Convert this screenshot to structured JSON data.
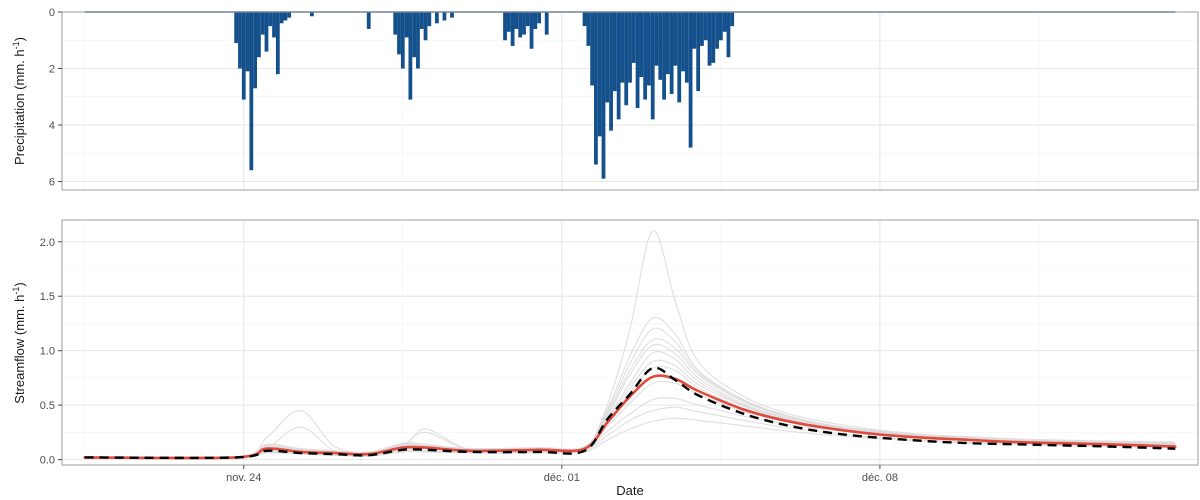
{
  "chart_data": [
    {
      "panel": "top",
      "type": "bar",
      "ylabel": "Precipitation (mm. h",
      "ylabel_sup": "-1",
      "ylabel_end": ")",
      "ylim": [
        6.3,
        0
      ],
      "y_reversed": true,
      "y_ticks": [
        0,
        2,
        4,
        6
      ],
      "y_tick_labels": [
        "0",
        "2",
        "4",
        "6"
      ],
      "grid": true,
      "colors": {
        "bars": "#14508c"
      },
      "x_range": [
        "2020-11-20T00:00",
        "2020-12-15T00:00"
      ],
      "x": [
        "2020-11-23T20:00",
        "2020-11-23T22:00",
        "2020-11-24T00:00",
        "2020-11-24T02:00",
        "2020-11-24T04:00",
        "2020-11-24T06:00",
        "2020-11-24T08:00",
        "2020-11-24T10:00",
        "2020-11-24T12:00",
        "2020-11-24T14:00",
        "2020-11-24T16:00",
        "2020-11-24T18:00",
        "2020-11-24T20:00",
        "2020-11-24T22:00",
        "2020-11-25T00:00",
        "2020-11-25T12:00",
        "2020-11-26T18:00",
        "2020-11-27T08:00",
        "2020-11-27T10:00",
        "2020-11-27T12:00",
        "2020-11-27T14:00",
        "2020-11-27T16:00",
        "2020-11-27T18:00",
        "2020-11-27T20:00",
        "2020-11-27T22:00",
        "2020-11-28T00:00",
        "2020-11-28T02:00",
        "2020-11-28T06:00",
        "2020-11-28T10:00",
        "2020-11-28T14:00",
        "2020-11-29T18:00",
        "2020-11-29T20:00",
        "2020-11-29T22:00",
        "2020-11-30T00:00",
        "2020-11-30T02:00",
        "2020-11-30T04:00",
        "2020-11-30T06:00",
        "2020-11-30T08:00",
        "2020-11-30T10:00",
        "2020-11-30T12:00",
        "2020-11-30T16:00",
        "2020-12-01T12:00",
        "2020-12-01T14:00",
        "2020-12-01T16:00",
        "2020-12-01T18:00",
        "2020-12-01T20:00",
        "2020-12-01T22:00",
        "2020-12-02T00:00",
        "2020-12-02T02:00",
        "2020-12-02T04:00",
        "2020-12-02T06:00",
        "2020-12-02T08:00",
        "2020-12-02T10:00",
        "2020-12-02T12:00",
        "2020-12-02T14:00",
        "2020-12-02T16:00",
        "2020-12-02T18:00",
        "2020-12-02T20:00",
        "2020-12-02T22:00",
        "2020-12-03T00:00",
        "2020-12-03T02:00",
        "2020-12-03T04:00",
        "2020-12-03T06:00",
        "2020-12-03T08:00",
        "2020-12-03T10:00",
        "2020-12-03T12:00",
        "2020-12-03T14:00",
        "2020-12-03T16:00",
        "2020-12-03T18:00",
        "2020-12-03T20:00",
        "2020-12-03T22:00",
        "2020-12-04T00:00",
        "2020-12-04T02:00",
        "2020-12-04T04:00",
        "2020-12-04T06:00",
        "2020-12-04T08:00",
        "2020-12-04T10:00",
        "2020-12-04T12:00",
        "2020-12-04T14:00",
        "2020-12-04T16:00",
        "2020-12-04T18:00"
      ],
      "values": [
        1.1,
        2.0,
        3.1,
        2.1,
        5.6,
        2.7,
        1.6,
        0.8,
        1.4,
        0.5,
        0.9,
        2.2,
        0.4,
        0.3,
        0.2,
        0.15,
        0.6,
        0.8,
        1.5,
        2.0,
        0.9,
        3.1,
        1.6,
        2.0,
        0.6,
        1.0,
        0.5,
        0.4,
        0.3,
        0.2,
        1.0,
        0.7,
        1.2,
        0.6,
        0.9,
        0.8,
        0.5,
        1.3,
        0.6,
        0.4,
        0.8,
        0.5,
        1.2,
        2.6,
        5.4,
        4.4,
        5.9,
        3.2,
        4.2,
        2.8,
        3.8,
        2.5,
        3.3,
        2.5,
        1.8,
        3.4,
        2.3,
        3.1,
        2.6,
        3.8,
        1.9,
        2.4,
        3.1,
        2.2,
        2.9,
        1.9,
        3.2,
        2.1,
        2.5,
        4.8,
        1.3,
        2.8,
        1.2,
        1.0,
        1.9,
        1.8,
        1.3,
        1.0,
        0.7,
        1.6,
        0.5
      ]
    },
    {
      "panel": "bottom",
      "type": "line",
      "ylabel": "Streamflow (mm. h",
      "ylabel_sup": "-1",
      "ylabel_end": ")",
      "xlabel": "Date",
      "ylim": [
        -0.05,
        2.2
      ],
      "y_ticks": [
        0,
        0.5,
        1,
        1.5,
        2
      ],
      "y_tick_labels": [
        "0.0",
        "0.5",
        "1.0",
        "1.5",
        "2.0"
      ],
      "x_ticks": [
        "2020-11-24",
        "2020-12-01",
        "2020-12-08"
      ],
      "x_tick_labels": [
        "nov. 24",
        "déc. 01",
        "déc. 08"
      ],
      "grid": true,
      "colors": {
        "ensemble": "#d9d9d9",
        "simulated": "#e04a3c",
        "observed": "#000000"
      },
      "x": [
        "2020-11-20T12:00",
        "2020-11-23T20:00",
        "2020-11-24T12:00",
        "2020-11-25T06:00",
        "2020-11-26T00:00",
        "2020-11-26T18:00",
        "2020-11-27T12:00",
        "2020-11-28T00:00",
        "2020-11-29T00:00",
        "2020-11-30T12:00",
        "2020-12-01T12:00",
        "2020-12-02T00:00",
        "2020-12-02T12:00",
        "2020-12-03T00:00",
        "2020-12-03T12:00",
        "2020-12-04T00:00",
        "2020-12-05T00:00",
        "2020-12-06T00:00",
        "2020-12-07T00:00",
        "2020-12-08T00:00",
        "2020-12-09T00:00",
        "2020-12-10T00:00",
        "2020-12-11T00:00",
        "2020-12-12T00:00",
        "2020-12-13T00:00",
        "2020-12-14T12:00"
      ],
      "series": [
        {
          "role": "simulated",
          "values": [
            0.02,
            0.02,
            0.1,
            0.07,
            0.06,
            0.05,
            0.11,
            0.11,
            0.08,
            0.09,
            0.1,
            0.34,
            0.58,
            0.76,
            0.74,
            0.63,
            0.46,
            0.35,
            0.28,
            0.23,
            0.2,
            0.18,
            0.16,
            0.15,
            0.14,
            0.12
          ]
        },
        {
          "role": "observed",
          "values": [
            0.02,
            0.02,
            0.08,
            0.06,
            0.05,
            0.04,
            0.09,
            0.09,
            0.07,
            0.07,
            0.08,
            0.37,
            0.6,
            0.84,
            0.73,
            0.59,
            0.42,
            0.31,
            0.24,
            0.2,
            0.17,
            0.15,
            0.14,
            0.13,
            0.12,
            0.1
          ]
        }
      ],
      "ensemble": [
        [
          0.02,
          0.02,
          0.14,
          0.1,
          0.07,
          0.05,
          0.12,
          0.12,
          0.09,
          0.1,
          0.11,
          0.46,
          0.95,
          1.3,
          1.15,
          0.82,
          0.55,
          0.4,
          0.31,
          0.26,
          0.22,
          0.2,
          0.18,
          0.17,
          0.16,
          0.15
        ],
        [
          0.02,
          0.02,
          0.08,
          0.06,
          0.05,
          0.04,
          0.09,
          0.1,
          0.07,
          0.08,
          0.09,
          0.26,
          0.42,
          0.55,
          0.56,
          0.5,
          0.4,
          0.32,
          0.27,
          0.22,
          0.2,
          0.18,
          0.17,
          0.16,
          0.15,
          0.14
        ],
        [
          0.02,
          0.02,
          0.2,
          0.45,
          0.12,
          0.07,
          0.15,
          0.14,
          0.1,
          0.1,
          0.11,
          0.5,
          1.2,
          2.1,
          1.45,
          0.9,
          0.58,
          0.42,
          0.33,
          0.27,
          0.23,
          0.21,
          0.19,
          0.18,
          0.17,
          0.16
        ],
        [
          0.02,
          0.02,
          0.11,
          0.08,
          0.06,
          0.05,
          0.13,
          0.25,
          0.09,
          0.09,
          0.1,
          0.38,
          0.7,
          0.98,
          0.92,
          0.72,
          0.5,
          0.37,
          0.29,
          0.24,
          0.21,
          0.19,
          0.17,
          0.16,
          0.15,
          0.14
        ],
        [
          0.02,
          0.02,
          0.07,
          0.05,
          0.04,
          0.04,
          0.08,
          0.08,
          0.06,
          0.07,
          0.08,
          0.22,
          0.36,
          0.45,
          0.48,
          0.44,
          0.36,
          0.29,
          0.24,
          0.2,
          0.18,
          0.16,
          0.15,
          0.14,
          0.13,
          0.12
        ],
        [
          0.02,
          0.02,
          0.12,
          0.09,
          0.07,
          0.06,
          0.14,
          0.13,
          0.1,
          0.11,
          0.12,
          0.42,
          0.82,
          1.1,
          1.02,
          0.78,
          0.53,
          0.39,
          0.3,
          0.25,
          0.22,
          0.2,
          0.18,
          0.17,
          0.16,
          0.15
        ],
        [
          0.02,
          0.02,
          0.09,
          0.07,
          0.05,
          0.05,
          0.1,
          0.11,
          0.08,
          0.09,
          0.1,
          0.32,
          0.62,
          0.84,
          0.82,
          0.66,
          0.47,
          0.35,
          0.28,
          0.23,
          0.2,
          0.18,
          0.16,
          0.15,
          0.14,
          0.13
        ],
        [
          0.02,
          0.02,
          0.1,
          0.3,
          0.08,
          0.06,
          0.11,
          0.28,
          0.09,
          0.1,
          0.1,
          0.4,
          0.78,
          1.05,
          0.97,
          0.75,
          0.51,
          0.38,
          0.3,
          0.25,
          0.21,
          0.19,
          0.17,
          0.16,
          0.15,
          0.14
        ],
        [
          0.02,
          0.02,
          0.06,
          0.05,
          0.04,
          0.03,
          0.07,
          0.07,
          0.06,
          0.06,
          0.07,
          0.18,
          0.28,
          0.35,
          0.38,
          0.36,
          0.31,
          0.26,
          0.22,
          0.19,
          0.17,
          0.15,
          0.14,
          0.13,
          0.12,
          0.11
        ],
        [
          0.02,
          0.02,
          0.13,
          0.1,
          0.08,
          0.06,
          0.13,
          0.12,
          0.09,
          0.1,
          0.11,
          0.44,
          0.88,
          1.2,
          1.08,
          0.8,
          0.54,
          0.4,
          0.31,
          0.26,
          0.22,
          0.2,
          0.18,
          0.17,
          0.16,
          0.15
        ],
        [
          0.02,
          0.02,
          0.1,
          0.08,
          0.06,
          0.05,
          0.12,
          0.11,
          0.09,
          0.09,
          0.1,
          0.36,
          0.66,
          0.9,
          0.86,
          0.69,
          0.49,
          0.36,
          0.29,
          0.24,
          0.21,
          0.19,
          0.17,
          0.16,
          0.15,
          0.14
        ],
        [
          0.02,
          0.02,
          0.11,
          0.09,
          0.07,
          0.05,
          0.1,
          0.11,
          0.08,
          0.09,
          0.1,
          0.3,
          0.52,
          0.7,
          0.7,
          0.6,
          0.44,
          0.34,
          0.27,
          0.23,
          0.2,
          0.18,
          0.16,
          0.15,
          0.14,
          0.13
        ]
      ]
    }
  ]
}
